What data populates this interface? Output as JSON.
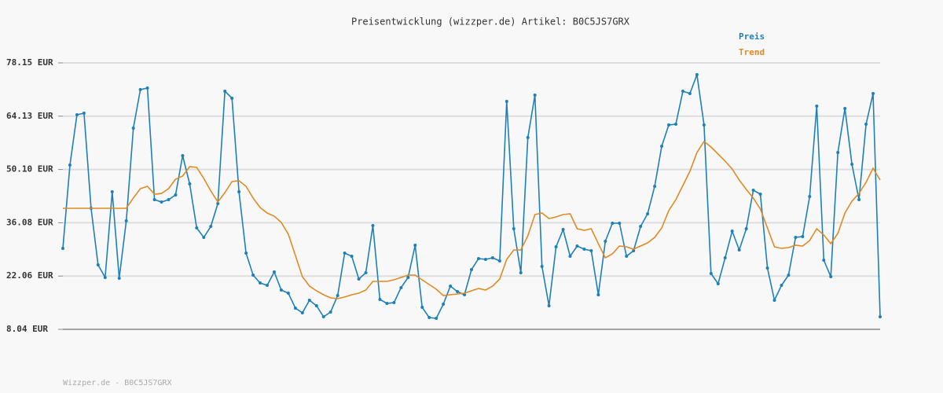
{
  "chart_data": {
    "type": "line",
    "title": "Preisentwicklung (wizzper.de) Artikel: B0C5JS7GRX",
    "footer": "Wizzper.de - B0C5JS7GRX",
    "ylim": [
      8.04,
      78.15
    ],
    "yticks": [
      {
        "value": 8.04,
        "label": "8.04 EUR"
      },
      {
        "value": 22.06,
        "label": "22.06 EUR"
      },
      {
        "value": 36.08,
        "label": "36.08 EUR"
      },
      {
        "value": 50.1,
        "label": "50.10 EUR"
      },
      {
        "value": 64.13,
        "label": "64.13 EUR"
      },
      {
        "value": 78.15,
        "label": "78.15 EUR"
      }
    ],
    "grid": true,
    "legend": "top-right",
    "series": [
      {
        "name": "Preis",
        "color": "#1f80b8",
        "markers": true,
        "values": [
          29.34,
          51.27,
          64.5,
          64.91,
          39.89,
          25.0,
          21.69,
          44.23,
          21.49,
          36.58,
          60.99,
          71.12,
          71.53,
          42.17,
          41.55,
          42.17,
          43.41,
          53.75,
          46.3,
          34.72,
          32.24,
          35.14,
          41.13,
          70.71,
          68.84,
          44.23,
          28.1,
          22.31,
          20.25,
          19.63,
          23.14,
          18.38,
          17.56,
          13.63,
          12.39,
          15.7,
          14.25,
          11.35,
          12.59,
          16.94,
          28.1,
          27.28,
          21.28,
          22.93,
          35.34,
          15.9,
          14.87,
          15.08,
          19.01,
          21.69,
          30.17,
          13.84,
          11.15,
          10.94,
          14.66,
          19.42,
          17.97,
          17.14,
          23.76,
          26.66,
          26.45,
          26.86,
          26.04,
          68.02,
          34.52,
          22.93,
          58.5,
          69.67,
          24.59,
          14.25,
          29.76,
          34.31,
          27.28,
          29.97,
          29.14,
          28.72,
          17.14,
          31.21,
          35.96,
          35.96,
          27.28,
          28.72,
          35.14,
          38.44,
          45.68,
          56.23,
          61.81,
          62.02,
          70.71,
          70.08,
          75.05,
          61.81,
          22.73,
          20.04,
          26.86,
          33.89,
          28.93,
          34.52,
          44.65,
          43.61,
          24.18,
          15.7,
          19.63,
          22.31,
          32.24,
          32.45,
          42.99,
          66.78,
          26.24,
          21.9,
          54.57,
          66.16,
          51.47,
          42.17,
          62.02,
          70.08,
          11.35
        ]
      },
      {
        "name": "Trend",
        "color": "#e08a24",
        "markers": false,
        "values": [
          39.89,
          39.89,
          39.89,
          39.89,
          39.89,
          39.89,
          39.89,
          39.89,
          39.89,
          39.89,
          42.6,
          45.06,
          45.68,
          43.6,
          43.8,
          45.06,
          47.54,
          48.37,
          50.85,
          50.65,
          47.75,
          44.44,
          41.55,
          44.03,
          46.92,
          47.13,
          45.68,
          42.58,
          40.1,
          38.65,
          37.82,
          36.17,
          33.07,
          27.48,
          21.9,
          19.42,
          18.18,
          17.14,
          16.32,
          16.11,
          16.53,
          17.14,
          17.56,
          18.38,
          20.66,
          20.66,
          20.66,
          21.07,
          21.69,
          22.31,
          22.31,
          21.07,
          19.83,
          18.59,
          16.94,
          17.14,
          17.35,
          17.56,
          18.18,
          18.8,
          18.38,
          19.42,
          21.28,
          26.45,
          28.93,
          28.93,
          32.65,
          38.24,
          38.65,
          37.2,
          37.61,
          38.24,
          38.44,
          34.52,
          34.1,
          34.52,
          30.59,
          26.86,
          27.89,
          29.97,
          29.76,
          29.14,
          29.97,
          30.79,
          32.24,
          34.72,
          39.27,
          42.17,
          45.89,
          49.61,
          54.57,
          57.47,
          56.02,
          54.16,
          52.3,
          50.23,
          47.34,
          44.85,
          42.58,
          39.68,
          34.72,
          29.76,
          29.34,
          29.55,
          30.17,
          29.97,
          31.41,
          34.52,
          32.86,
          30.59,
          33.28,
          38.65,
          41.75,
          43.82,
          46.71,
          50.44,
          47.34
        ]
      }
    ]
  }
}
